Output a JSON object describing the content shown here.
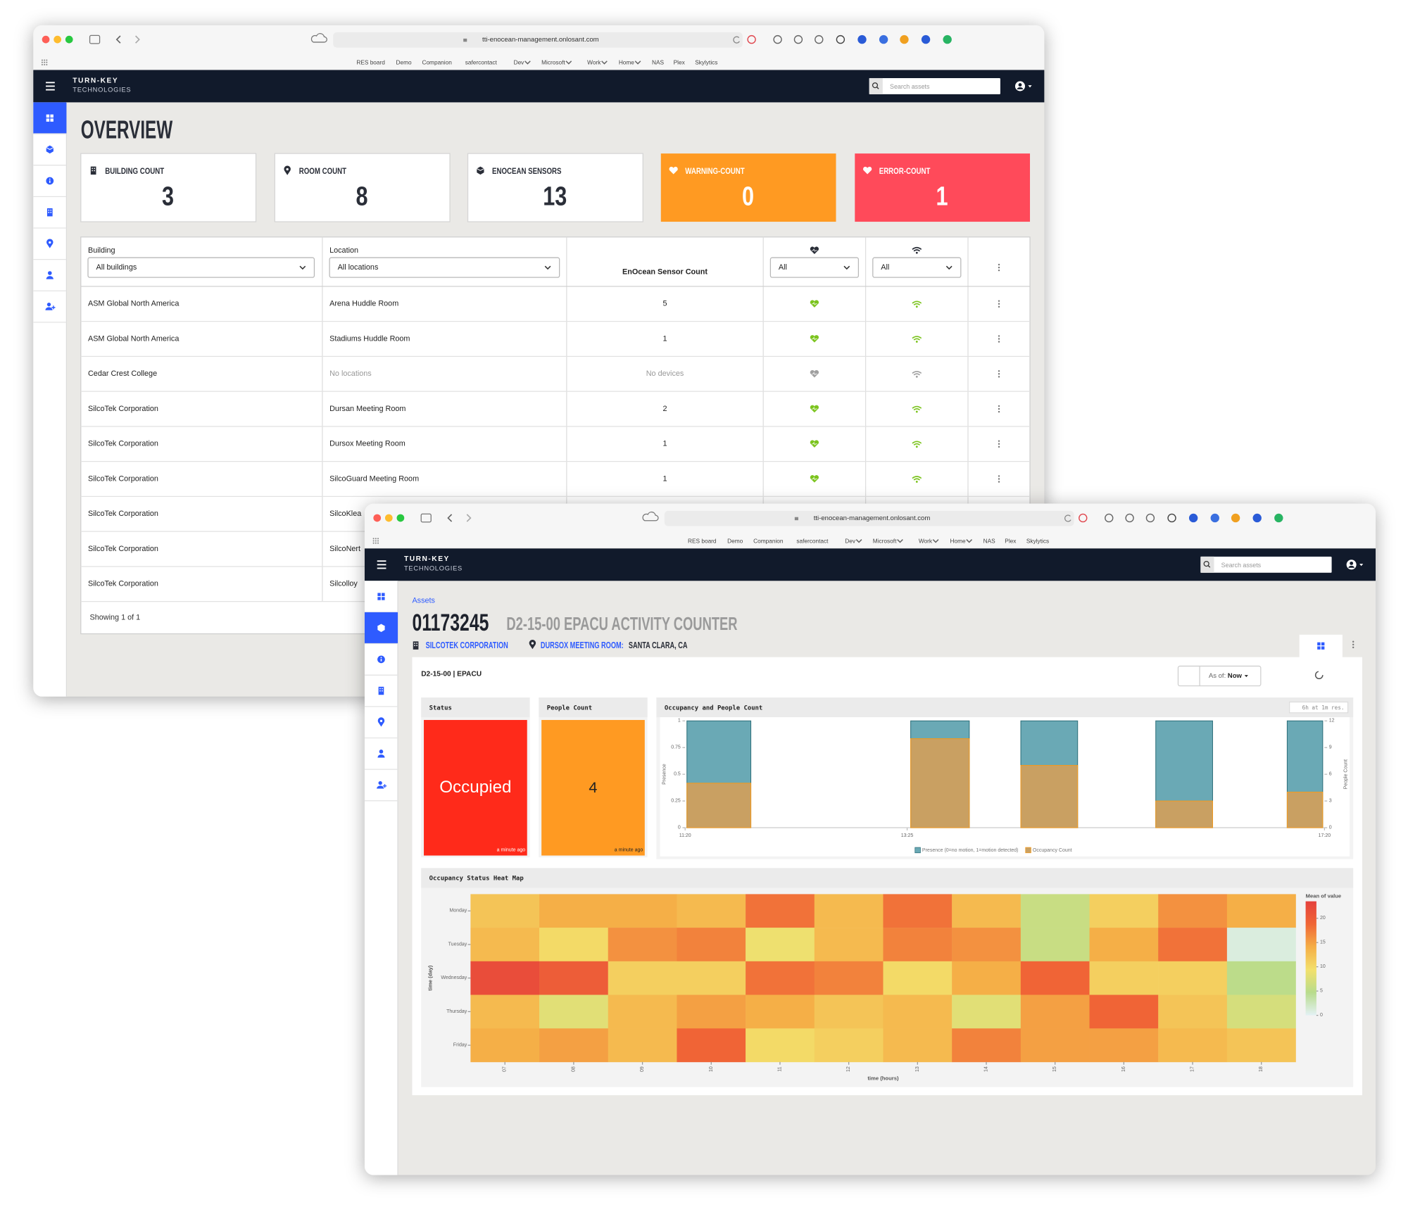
{
  "browser": {
    "url": "tti-enocean-management.onlosant.com",
    "bookmarks": [
      {
        "label": "RES board"
      },
      {
        "label": "Demo"
      },
      {
        "label": "Companion"
      },
      {
        "label": "safercontact"
      },
      {
        "label": "Dev",
        "menu": true
      },
      {
        "label": "Microsoft",
        "menu": true
      },
      {
        "label": "Work",
        "menu": true
      },
      {
        "label": "Home",
        "menu": true
      },
      {
        "label": "NAS"
      },
      {
        "label": "Plex"
      },
      {
        "label": "Skylytics"
      }
    ]
  },
  "app": {
    "brand": "TURN-KEY",
    "brand_sub": "TECHNOLOGIES",
    "search_placeholder": "Search assets"
  },
  "overview": {
    "title": "OVERVIEW",
    "cards": [
      {
        "label": "BUILDING COUNT",
        "value": 3,
        "color": "#ffffff"
      },
      {
        "label": "ROOM COUNT",
        "value": 8,
        "color": "#ffffff"
      },
      {
        "label": "ENOCEAN SENSORS",
        "value": 13,
        "color": "#ffffff"
      },
      {
        "label": "WARNING-COUNT",
        "value": 0,
        "color": "#ff9a22"
      },
      {
        "label": "ERROR-COUNT",
        "value": 1,
        "color": "#ff4a5a"
      }
    ],
    "table": {
      "columns": {
        "building": "Building",
        "location": "Location",
        "count": "EnOcean Sensor Count"
      },
      "filters": {
        "building": "All buildings",
        "location": "All locations",
        "health": "All",
        "signal": "All"
      },
      "rows": [
        {
          "building": "ASM Global North America",
          "location": "Arena Huddle Room",
          "count": 5,
          "online": true
        },
        {
          "building": "ASM Global North America",
          "location": "Stadiums Huddle Room",
          "count": 1,
          "online": true
        },
        {
          "building": "Cedar Crest College",
          "location": "No locations",
          "count": "No devices",
          "online": false
        },
        {
          "building": "SilcoTek Corporation",
          "location": "Dursan Meeting Room",
          "count": 2,
          "online": true
        },
        {
          "building": "SilcoTek Corporation",
          "location": "Dursox Meeting Room",
          "count": 1,
          "online": true
        },
        {
          "building": "SilcoTek Corporation",
          "location": "SilcoGuard Meeting Room",
          "count": 1,
          "online": true
        },
        {
          "building": "SilcoTek Corporation",
          "location": "SilcoKlea"
        },
        {
          "building": "SilcoTek Corporation",
          "location": "SilcoNert"
        },
        {
          "building": "SilcoTek Corporation",
          "location": "Silcolloy"
        }
      ],
      "footer": "Showing 1 of 1"
    }
  },
  "detail": {
    "breadcrumb": "Assets",
    "id": "01173245",
    "name": "D2-15-00 EPACU ACTIVITY COUNTER",
    "building": "SILCOTEK CORPORATION",
    "location": "DURSOX MEETING ROOM:",
    "city": "SANTA CLARA, CA",
    "panel_title": "D2-15-00 | EPACU",
    "as_of_label": "As of:",
    "as_of": "Now",
    "status": {
      "title": "Status",
      "value": "Occupied",
      "time": "a minute ago",
      "color": "#ff2a1a"
    },
    "people": {
      "title": "People Count",
      "value": 4,
      "time": "a minute ago",
      "color": "#ff9a22"
    }
  },
  "chart_data": [
    {
      "type": "bar",
      "title": "Occupancy and People Count",
      "subtitle": "6h at 1m res.",
      "x": [
        "11:21",
        "13:27",
        "14:29",
        "15:45",
        "16:59"
      ],
      "x_end": [
        "11:57",
        "14:00",
        "15:01",
        "16:17",
        "17:19"
      ],
      "xlim": [
        "11:20",
        "17:20"
      ],
      "xticks": [
        "11:20",
        "13:25",
        "17:20"
      ],
      "ylabel": "Presence",
      "ylim": [
        0,
        1
      ],
      "yticks": [
        0,
        0.25,
        0.5,
        0.75,
        1
      ],
      "y2label": "People Count",
      "y2lim": [
        0,
        12
      ],
      "y2ticks": [
        0,
        3,
        6,
        9,
        12
      ],
      "series": [
        {
          "name": "Presence (0=no motion, 1=motion detected)",
          "color": "#6aa9b5",
          "values": [
            1,
            1,
            1,
            1,
            1
          ]
        },
        {
          "name": "Occupancy Count",
          "color": "#c9a062",
          "axis": "y2",
          "values": [
            5,
            10,
            7,
            3,
            4
          ]
        }
      ]
    },
    {
      "type": "heatmap",
      "title": "Occupancy Status Heat Map",
      "x": [
        "07",
        "08",
        "09",
        "10",
        "11",
        "12",
        "13",
        "14",
        "15",
        "16",
        "17",
        "18"
      ],
      "y": [
        "Monday",
        "Tuesday",
        "Wednesday",
        "Thursday",
        "Friday"
      ],
      "z": [
        [
          12,
          14,
          14,
          13,
          18,
          13,
          18,
          13,
          6,
          11,
          16,
          14
        ],
        [
          13,
          10,
          16,
          17,
          9,
          13,
          17,
          16,
          6,
          14,
          18,
          1
        ],
        [
          22,
          20,
          11,
          11,
          18,
          17,
          10,
          14,
          19,
          11,
          11,
          5
        ],
        [
          13,
          8,
          13,
          15,
          14,
          12,
          13,
          8,
          15,
          19,
          12,
          7
        ],
        [
          14,
          15,
          13,
          19,
          10,
          11,
          13,
          17,
          15,
          15,
          13,
          12
        ]
      ],
      "xlabel": "time (hours)",
      "ylabel": "time (day)",
      "colorbar_title": "Mean of value",
      "zlim": [
        0,
        23.5
      ],
      "zticks": [
        0,
        5,
        10,
        15,
        20
      ],
      "colors": [
        "#e3f1f4",
        "#b8dc8c",
        "#f3e06c",
        "#f5ae46",
        "#f06636",
        "#e5413c"
      ]
    }
  ]
}
